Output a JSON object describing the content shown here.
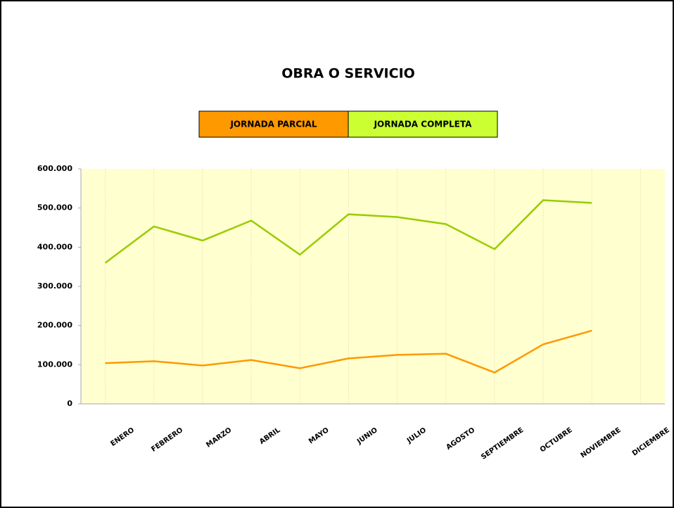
{
  "chart_data": {
    "type": "line",
    "title": "OBRA O SERVICIO",
    "categories": [
      "ENERO",
      "FEBRERO",
      "MARZO",
      "ABRIL",
      "MAYO",
      "JUNIO",
      "JULIO",
      "AGOSTO",
      "SEPTIEMBRE",
      "OCTUBRE",
      "NOVIEMBRE",
      "DICIEMBRE"
    ],
    "series": [
      {
        "name": "JORNADA PARCIAL",
        "color": "#ff9900",
        "values": [
          104000,
          109000,
          98000,
          112000,
          91000,
          116000,
          125000,
          128000,
          80000,
          152000,
          187000,
          null
        ]
      },
      {
        "name": "JORNADA COMPLETA",
        "color": "#99cc00",
        "legend_color": "#ccff33",
        "values": [
          360000,
          453000,
          417000,
          468000,
          381000,
          484000,
          477000,
          459000,
          395000,
          520000,
          513000,
          null
        ]
      }
    ],
    "ylim": [
      0,
      600000
    ],
    "yticks": [
      0,
      {
        "value": 100000,
        "label": "100.000"
      },
      {
        "value": 200000,
        "label": "200.000"
      },
      {
        "value": 300000,
        "label": "300.000"
      },
      {
        "value": 400000,
        "label": "400.000"
      },
      {
        "value": 500000,
        "label": "500.000"
      },
      {
        "value": 600000,
        "label": "600.000"
      }
    ],
    "grid": true,
    "plot_background": "#ffffd0"
  }
}
